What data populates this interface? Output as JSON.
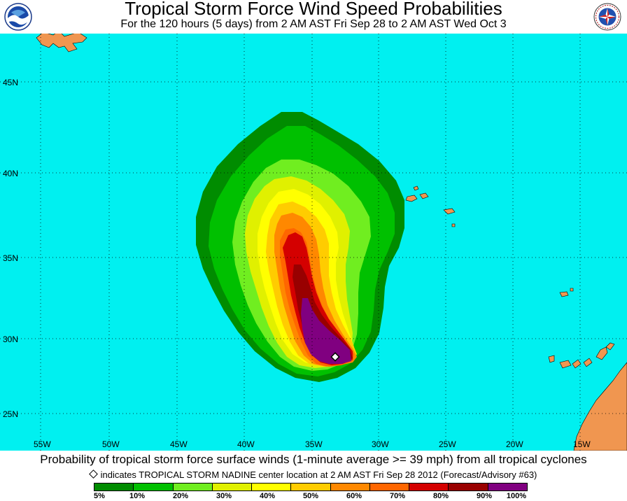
{
  "header": {
    "title": "Tropical Storm Force Wind Speed Probabilities",
    "subtitle": "For the 120 hours (5 days) from 2 AM AST Fri Sep 28 to 2 AM AST Wed Oct 3"
  },
  "logos": {
    "left_icon": "noaa-logo-icon",
    "right_icon": "national-weather-service-logo-icon"
  },
  "map": {
    "ocean_color": "#00f0f0",
    "land_color": "#f09650",
    "lat_labels": [
      "45N",
      "40N",
      "35N",
      "30N",
      "25N"
    ],
    "lon_labels": [
      "55W",
      "50W",
      "45W",
      "40W",
      "35W",
      "30W",
      "25W",
      "20W",
      "15W"
    ],
    "storm_center_marker": "diamond-icon",
    "probability_contour_colors": [
      "#008c00",
      "#00c000",
      "#70ee20",
      "#e0f000",
      "#ffff00",
      "#ffcc00",
      "#ff8800",
      "#ff6600",
      "#d40000",
      "#990000",
      "#800080"
    ]
  },
  "footer": {
    "caption": "Probability of tropical storm force surface winds (1-minute average >= 39 mph) from all tropical cyclones",
    "center_note": "indicates TROPICAL STORM NADINE center location at 2 AM AST Fri Sep 28 2012 (Forecast/Advisory #63)"
  },
  "legend": {
    "colors": [
      "#008c00",
      "#00c000",
      "#70ee20",
      "#e0f000",
      "#ffff00",
      "#ffcc00",
      "#ff8800",
      "#ff6600",
      "#d40000",
      "#990000",
      "#800080"
    ],
    "labels": [
      "5%",
      "10%",
      "20%",
      "30%",
      "40%",
      "50%",
      "60%",
      "70%",
      "80%",
      "90%",
      "100%"
    ]
  }
}
